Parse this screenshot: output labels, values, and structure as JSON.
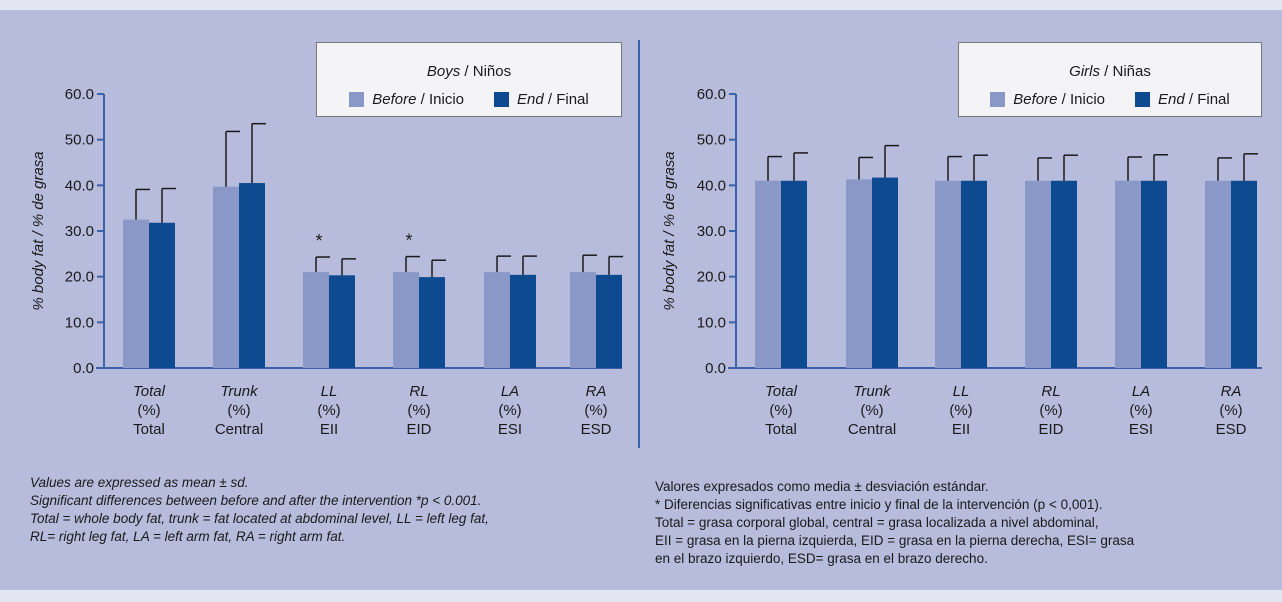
{
  "colors": {
    "before": "#8a98c8",
    "end": "#0d4a8f",
    "axis": "#3a62a8",
    "background": "#b7bcdc",
    "strip": "#e3e5f1"
  },
  "chart_data": [
    {
      "type": "bar",
      "ylabel": "% body fat / % de grasa",
      "ylim": [
        0,
        60
      ],
      "yticks": [
        "0.0",
        "10.0",
        "20.0",
        "30.0",
        "40.0",
        "50.0",
        "60.0"
      ],
      "legend_title": {
        "en": "Boys",
        "es": "Niños"
      },
      "legend_position": "top-right",
      "categories": [
        {
          "en": "Total",
          "unit": "(%)",
          "es": "Total"
        },
        {
          "en": "Trunk",
          "unit": "(%)",
          "es": "Central"
        },
        {
          "en": "LL",
          "unit": "(%)",
          "es": "EII"
        },
        {
          "en": "RL",
          "unit": "(%)",
          "es": "EID"
        },
        {
          "en": "LA",
          "unit": "(%)",
          "es": "ESI"
        },
        {
          "en": "RA",
          "unit": "(%)",
          "es": "ESD"
        }
      ],
      "series": [
        {
          "name_en": "Before",
          "name_es": "Inicio",
          "values": [
            32.5,
            39.7,
            21.0,
            21.0,
            21.0,
            21.0
          ],
          "errors": [
            6.6,
            12.1,
            3.3,
            3.4,
            3.5,
            3.7
          ]
        },
        {
          "name_en": "End",
          "name_es": "Final",
          "values": [
            31.8,
            40.5,
            20.3,
            19.9,
            20.4,
            20.4
          ],
          "errors": [
            7.5,
            13.0,
            3.6,
            3.7,
            4.1,
            4.0
          ]
        }
      ],
      "annotations": [
        {
          "category": 2,
          "text": "*"
        },
        {
          "category": 3,
          "text": "*"
        }
      ]
    },
    {
      "type": "bar",
      "ylabel": "% body fat / % de grasa",
      "ylim": [
        0,
        60
      ],
      "yticks": [
        "0.0",
        "10.0",
        "20.0",
        "30.0",
        "40.0",
        "50.0",
        "60.0"
      ],
      "legend_title": {
        "en": "Girls",
        "es": "Niñas"
      },
      "legend_position": "top-right",
      "categories": [
        {
          "en": "Total",
          "unit": "(%)",
          "es": "Total"
        },
        {
          "en": "Trunk",
          "unit": "(%)",
          "es": "Central"
        },
        {
          "en": "LL",
          "unit": "(%)",
          "es": "EII"
        },
        {
          "en": "RL",
          "unit": "(%)",
          "es": "EID"
        },
        {
          "en": "LA",
          "unit": "(%)",
          "es": "ESI"
        },
        {
          "en": "RA",
          "unit": "(%)",
          "es": "ESD"
        }
      ],
      "series": [
        {
          "name_en": "Before",
          "name_es": "Inicio",
          "values": [
            41.0,
            41.3,
            41.0,
            41.0,
            41.0,
            41.0
          ],
          "errors": [
            5.3,
            4.8,
            5.3,
            5.0,
            5.2,
            5.0
          ]
        },
        {
          "name_en": "End",
          "name_es": "Final",
          "values": [
            41.0,
            41.7,
            41.0,
            41.0,
            41.0,
            41.0
          ],
          "errors": [
            6.1,
            7.0,
            5.6,
            5.6,
            5.7,
            5.9
          ]
        }
      ],
      "annotations": []
    }
  ],
  "legend": {
    "boys_title_en": "Boys",
    "boys_title_es": " / Niños",
    "girls_title_en": "Girls",
    "girls_title_es": " / Niñas",
    "before_en": "Before",
    "before_es": " / Inicio",
    "end_en": "End",
    "end_es": " / Final"
  },
  "notes": {
    "en": [
      "Values are expressed as mean ± sd.",
      "Significant differences between before and after the intervention *p < 0.001.",
      "Total = whole body fat, trunk = fat located at abdominal level, LL = left leg fat,",
      "RL= right leg fat, LA = left arm fat, RA = right arm fat."
    ],
    "es": [
      "Valores expresados como media ± desviación estándar.",
      "* Diferencias significativas entre inicio y final de la intervención (p < 0,001).",
      "Total = grasa corporal global, central = grasa localizada a nivel abdominal,",
      "EII = grasa en la pierna izquierda, EID = grasa en la pierna derecha, ESI= grasa",
      "en el brazo izquierdo, ESD= grasa en el brazo derecho."
    ]
  }
}
